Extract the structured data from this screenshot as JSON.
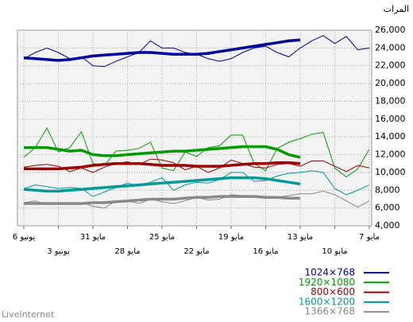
{
  "chart_data": {
    "type": "line",
    "y_axis_title": "المرات",
    "source": "LiveInternet",
    "categories": [
      "6 يونيو",
      null,
      null,
      "3 يونيو",
      null,
      null,
      "31 مايو",
      null,
      null,
      "28 مايو",
      null,
      null,
      "25 مايو",
      null,
      null,
      "22 مايو",
      null,
      null,
      "19 مايو",
      null,
      null,
      "16 مايو",
      null,
      null,
      "13 مايو",
      null,
      null,
      "10 مايو",
      null,
      null,
      "7 مايو"
    ],
    "ylim": [
      4000,
      26000
    ],
    "yticks": [
      {
        "value": 4000,
        "label": "4,000"
      },
      {
        "value": 6000,
        "label": "6,000"
      },
      {
        "value": 8000,
        "label": "8,000"
      },
      {
        "value": 10000,
        "label": "10,000"
      },
      {
        "value": 12000,
        "label": "12,000"
      },
      {
        "value": 14000,
        "label": "14,000"
      },
      {
        "value": 16000,
        "label": "16,000"
      },
      {
        "value": 18000,
        "label": "18,000"
      },
      {
        "value": 20000,
        "label": "20,000"
      },
      {
        "value": 22000,
        "label": "22,000"
      },
      {
        "value": 24000,
        "label": "24,000"
      },
      {
        "value": 26000,
        "label": "26,000"
      }
    ],
    "grid": true,
    "y_axis_side": "right",
    "series": [
      {
        "name": "1024×768",
        "color": "#000099",
        "values": [
          22800,
          23500,
          24000,
          23500,
          22800,
          23000,
          22000,
          21900,
          22500,
          23000,
          23500,
          24800,
          24000,
          24000,
          23500,
          23300,
          22800,
          22500,
          22800,
          23500,
          24000,
          24200,
          23500,
          23000,
          24000,
          24800,
          25400,
          24500,
          25300,
          23800,
          24000
        ],
        "trend": [
          22900,
          22800,
          22700,
          22600,
          22700,
          22900,
          23100,
          23200,
          23300,
          23400,
          23500,
          23500,
          23400,
          23300,
          23300,
          23300,
          23400,
          23600,
          23800,
          24000,
          24200,
          24400,
          24600,
          24800,
          24900,
          null,
          null,
          null,
          null,
          null,
          null
        ]
      },
      {
        "name": "1920×1080",
        "color": "#009900",
        "values": [
          11700,
          12800,
          15000,
          12300,
          12800,
          14600,
          11000,
          10800,
          12400,
          12500,
          12700,
          13400,
          10500,
          10200,
          12300,
          11800,
          12800,
          13000,
          14200,
          14200,
          11000,
          10200,
          12700,
          13400,
          13800,
          14300,
          14500,
          10500,
          9500,
          10400,
          12600
        ],
        "trend": [
          12800,
          12800,
          12800,
          12600,
          12400,
          12500,
          12000,
          11900,
          11900,
          12000,
          12100,
          12200,
          12300,
          12400,
          12400,
          12500,
          12600,
          12700,
          12800,
          12900,
          12900,
          12900,
          12600,
          12000,
          11700,
          null,
          null,
          null,
          null,
          null,
          null
        ]
      },
      {
        "name": "800×600",
        "color": "#990000",
        "values": [
          10600,
          10800,
          10900,
          10700,
          10100,
          10500,
          10000,
          10600,
          11000,
          11200,
          10900,
          11500,
          11400,
          11100,
          10300,
          10700,
          10000,
          10500,
          11400,
          11000,
          10600,
          10500,
          10900,
          11000,
          10700,
          11300,
          11300,
          10700,
          10100,
          10800,
          10500
        ],
        "trend": [
          10400,
          10400,
          10400,
          10400,
          10500,
          10600,
          10800,
          10900,
          11000,
          11000,
          11000,
          10900,
          10800,
          10800,
          10800,
          10700,
          10700,
          10700,
          10800,
          10900,
          11000,
          11000,
          11100,
          11100,
          11000,
          null,
          null,
          null,
          null,
          null,
          null
        ]
      },
      {
        "name": "1600×1200",
        "color": "#009999",
        "values": [
          8200,
          8600,
          8400,
          8200,
          8300,
          8200,
          7300,
          7800,
          8300,
          8800,
          8500,
          8900,
          9400,
          8000,
          8600,
          8900,
          8800,
          9200,
          10000,
          10000,
          9000,
          9100,
          9600,
          9900,
          10000,
          10200,
          10000,
          8200,
          7500,
          8000,
          8600
        ],
        "trend": [
          8100,
          8000,
          7900,
          7900,
          8000,
          8100,
          8200,
          8300,
          8400,
          8500,
          8600,
          8700,
          8800,
          8900,
          9000,
          9100,
          9200,
          9300,
          9400,
          9400,
          9400,
          9300,
          9100,
          8900,
          8700,
          null,
          null,
          null,
          null,
          null,
          null
        ]
      },
      {
        "name": "1366×768",
        "color": "#888888",
        "values": [
          6600,
          6800,
          6400,
          6500,
          6400,
          6600,
          6200,
          6000,
          6800,
          6800,
          6500,
          7000,
          6700,
          6500,
          6800,
          7200,
          6900,
          7000,
          7500,
          7400,
          7200,
          7300,
          7200,
          7400,
          7600,
          7600,
          7900,
          7500,
          6800,
          6100,
          6800
        ],
        "trend": [
          6500,
          6500,
          6500,
          6500,
          6500,
          6500,
          6600,
          6600,
          6700,
          6800,
          6900,
          7000,
          7000,
          7000,
          7100,
          7200,
          7200,
          7300,
          7300,
          7300,
          7300,
          7200,
          7200,
          7100,
          7100,
          null,
          null,
          null,
          null,
          null,
          null
        ]
      }
    ]
  }
}
